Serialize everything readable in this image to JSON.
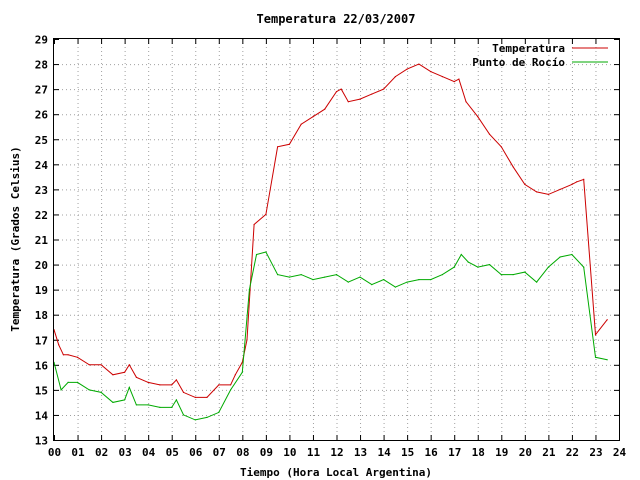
{
  "chart_data": {
    "type": "line",
    "title": "Temperatura 22/03/2007",
    "xlabel": "Tiempo (Hora Local Argentina)",
    "ylabel": "Temperatura (Grados Celsius)",
    "xlim": [
      0,
      24
    ],
    "ylim": [
      13,
      29
    ],
    "x_ticks": [
      "00",
      "01",
      "02",
      "03",
      "04",
      "05",
      "06",
      "07",
      "08",
      "09",
      "10",
      "11",
      "12",
      "13",
      "14",
      "15",
      "16",
      "17",
      "18",
      "19",
      "20",
      "21",
      "22",
      "23",
      "24"
    ],
    "y_ticks": [
      "13",
      "14",
      "15",
      "16",
      "17",
      "18",
      "19",
      "20",
      "21",
      "22",
      "23",
      "24",
      "25",
      "26",
      "27",
      "28",
      "29"
    ],
    "grid": true,
    "legend_position": "top-right",
    "series": [
      {
        "name": "Temperatura",
        "color": "#cc0000",
        "x": [
          0,
          0.2,
          0.4,
          0.6,
          1.0,
          1.5,
          2.0,
          2.5,
          3.0,
          3.2,
          3.5,
          4.0,
          4.5,
          5.0,
          5.2,
          5.5,
          6.0,
          6.5,
          7.0,
          7.5,
          7.7,
          8.0,
          8.2,
          8.5,
          9.0,
          9.5,
          10.0,
          10.5,
          11.0,
          11.5,
          12.0,
          12.2,
          12.5,
          13.0,
          13.5,
          14.0,
          14.5,
          15.0,
          15.5,
          16.0,
          16.5,
          17.0,
          17.2,
          17.5,
          18.0,
          18.5,
          19.0,
          19.5,
          20.0,
          20.5,
          21.0,
          21.5,
          22.0,
          22.2,
          22.5,
          23.0,
          23.5
        ],
        "values": [
          17.4,
          16.8,
          16.4,
          16.4,
          16.3,
          16.0,
          16.0,
          15.6,
          15.7,
          16.0,
          15.5,
          15.3,
          15.2,
          15.2,
          15.4,
          14.9,
          14.7,
          14.7,
          15.2,
          15.2,
          15.6,
          16.1,
          17.0,
          21.6,
          22.0,
          24.7,
          24.8,
          25.6,
          25.9,
          26.2,
          26.9,
          27.0,
          26.5,
          26.6,
          26.8,
          27.0,
          27.5,
          27.8,
          28.0,
          27.7,
          27.5,
          27.3,
          27.4,
          26.5,
          25.9,
          25.2,
          24.7,
          23.9,
          23.2,
          22.9,
          22.8,
          23.0,
          23.2,
          23.3,
          23.4,
          17.2,
          17.8
        ]
      },
      {
        "name": "Punto de Rocío",
        "color": "#00aa00",
        "x": [
          0,
          0.3,
          0.6,
          1.0,
          1.5,
          2.0,
          2.5,
          3.0,
          3.2,
          3.5,
          4.0,
          4.5,
          5.0,
          5.2,
          5.5,
          6.0,
          6.5,
          7.0,
          7.5,
          8.0,
          8.3,
          8.6,
          9.0,
          9.5,
          10.0,
          10.5,
          11.0,
          11.5,
          12.0,
          12.5,
          13.0,
          13.5,
          14.0,
          14.5,
          15.0,
          15.5,
          16.0,
          16.5,
          17.0,
          17.3,
          17.6,
          18.0,
          18.5,
          19.0,
          19.5,
          20.0,
          20.5,
          21.0,
          21.5,
          22.0,
          22.5,
          23.0,
          23.5
        ],
        "values": [
          16.1,
          15.0,
          15.3,
          15.3,
          15.0,
          14.9,
          14.5,
          14.6,
          15.1,
          14.4,
          14.4,
          14.3,
          14.3,
          14.6,
          14.0,
          13.8,
          13.9,
          14.1,
          15.0,
          15.7,
          19.0,
          20.4,
          20.5,
          19.6,
          19.5,
          19.6,
          19.4,
          19.5,
          19.6,
          19.3,
          19.5,
          19.2,
          19.4,
          19.1,
          19.3,
          19.4,
          19.4,
          19.6,
          19.9,
          20.4,
          20.1,
          19.9,
          20.0,
          19.6,
          19.6,
          19.7,
          19.3,
          19.9,
          20.3,
          20.4,
          19.9,
          16.3,
          16.2
        ]
      }
    ]
  }
}
